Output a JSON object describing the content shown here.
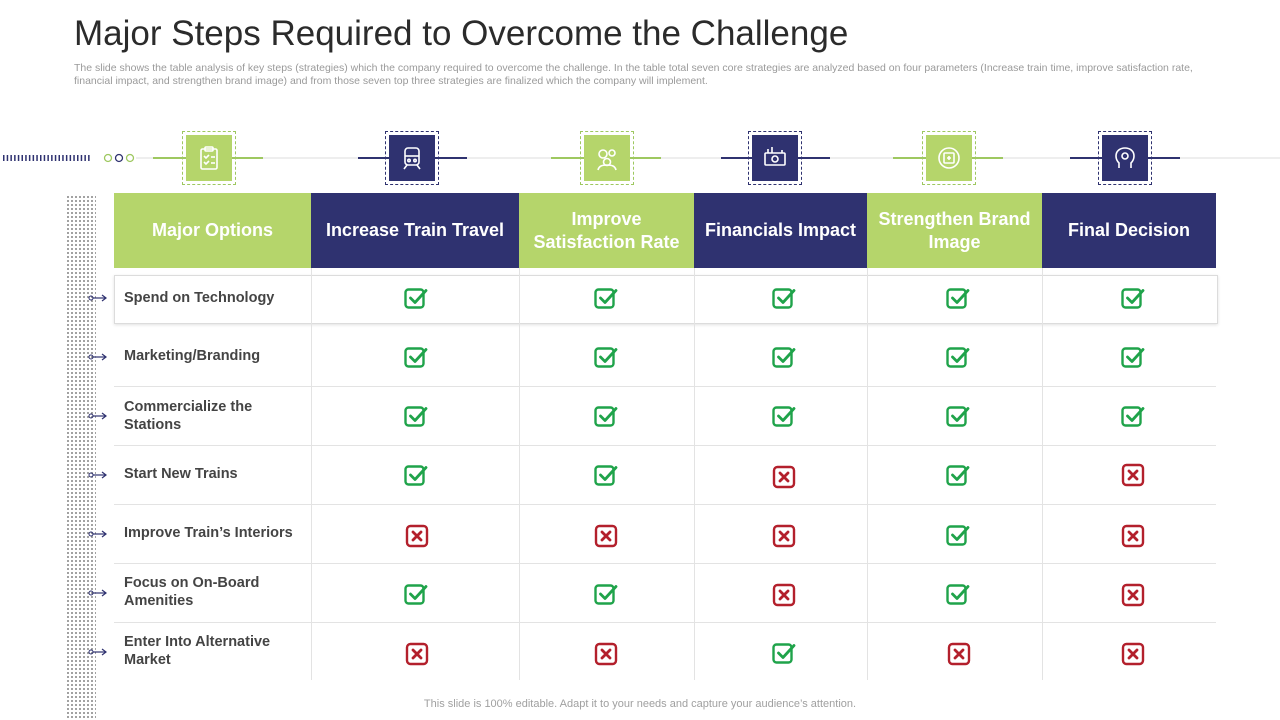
{
  "header": {
    "title": "Major Steps Required to Overcome the Challenge",
    "subtitle": "The slide shows the table analysis of key steps (strategies) which the company required to overcome the challenge. In the table total seven core strategies are analyzed based on four parameters (Increase train time, improve satisfaction rate, financial impact, and strengthen brand image) and from those seven top three strategies are finalized which the company will implement."
  },
  "colors": {
    "green": "#b5d56b",
    "navy": "#2f3270",
    "check": "#1fa34a",
    "cross": "#b3202c"
  },
  "icons": [
    "clipboard-icon",
    "train-icon",
    "gears-people-icon",
    "money-icon",
    "brand-badge-icon",
    "decision-head-icon"
  ],
  "columns": [
    "Major Options",
    "Increase Train Travel",
    "Improve Satisfaction Rate",
    "Financials Impact",
    "Strengthen Brand Image",
    "Final Decision"
  ],
  "rows": [
    {
      "label": "Spend on Technology",
      "marks": [
        "check",
        "check",
        "check",
        "check",
        "check"
      ]
    },
    {
      "label": "Marketing/Branding",
      "marks": [
        "check",
        "check",
        "check",
        "check",
        "check"
      ]
    },
    {
      "label": "Commercialize the Stations",
      "marks": [
        "check",
        "check",
        "check",
        "check",
        "check"
      ]
    },
    {
      "label": "Start New Trains",
      "marks": [
        "check",
        "check",
        "cross",
        "check",
        "cross"
      ]
    },
    {
      "label": "Improve Train’s Interiors",
      "marks": [
        "cross",
        "cross",
        "cross",
        "check",
        "cross"
      ]
    },
    {
      "label": "Focus on On-Board Amenities",
      "marks": [
        "check",
        "check",
        "cross",
        "check",
        "cross"
      ]
    },
    {
      "label": "Enter Into Alternative Market",
      "marks": [
        "cross",
        "cross",
        "check",
        "cross",
        "cross"
      ]
    }
  ],
  "footer": "This slide is 100% editable. Adapt it to your needs and capture your audience’s attention."
}
